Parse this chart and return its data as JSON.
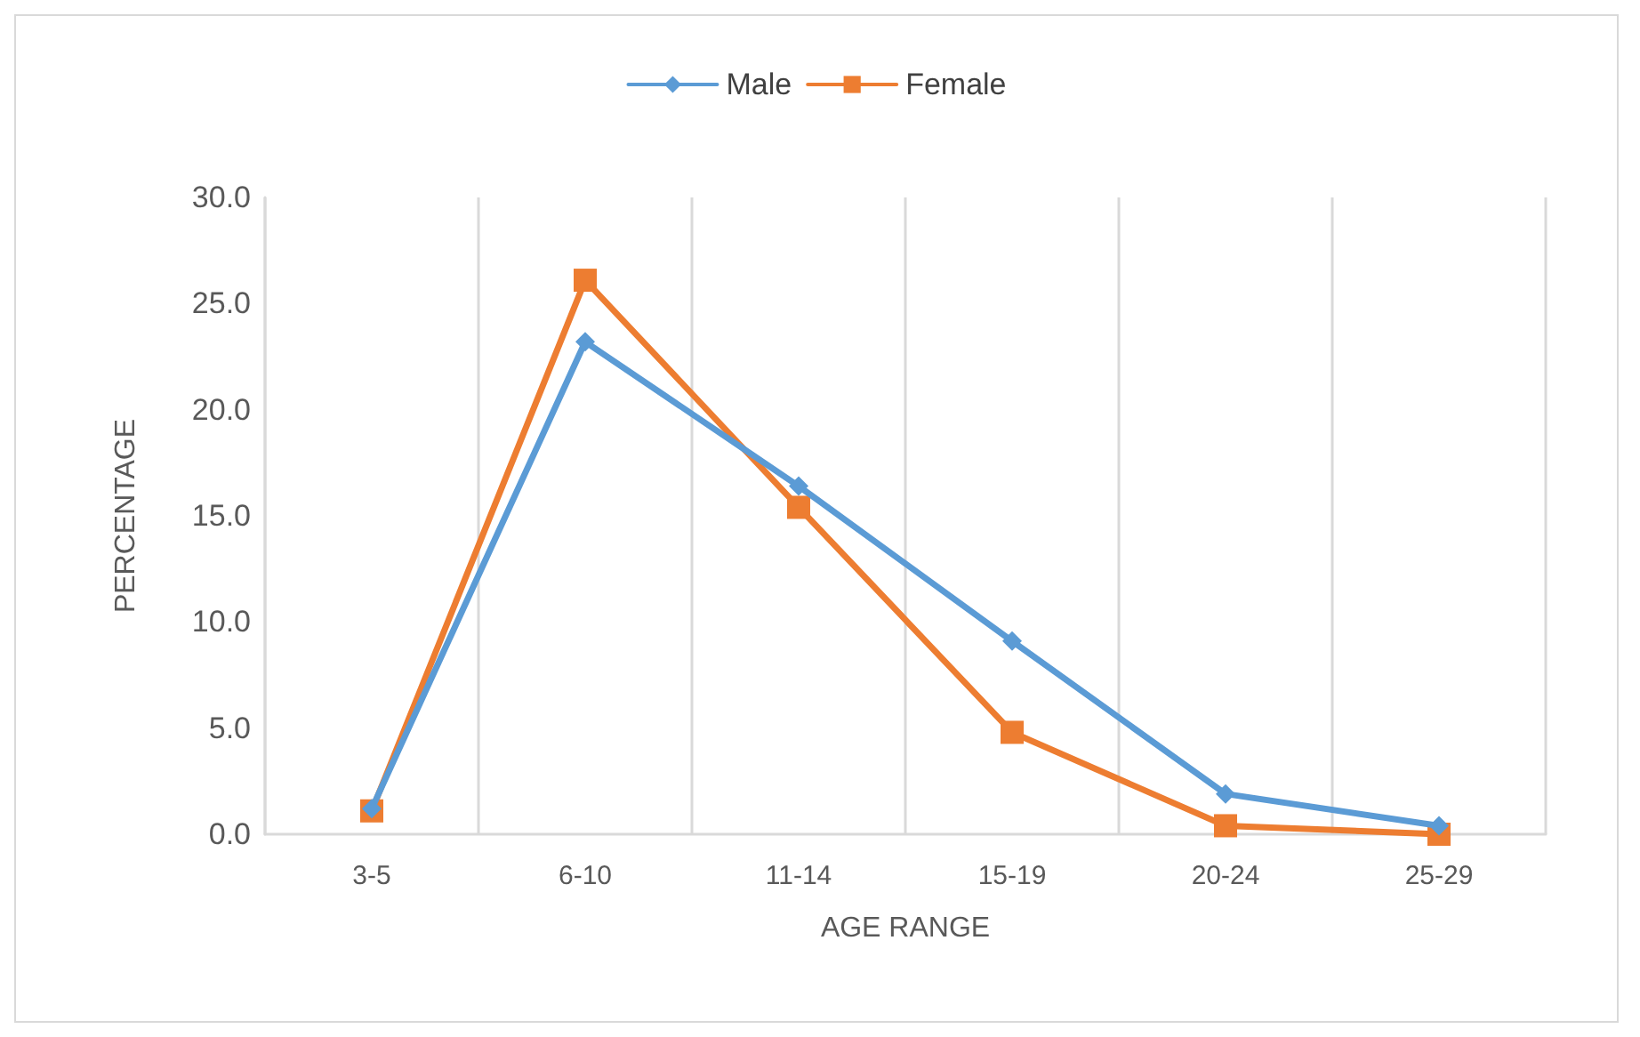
{
  "chart_data": {
    "type": "line",
    "xlabel": "AGE RANGE",
    "ylabel": "PERCENTAGE",
    "categories": [
      "3-5",
      "6-10",
      "11-14",
      "15-19",
      "20-24",
      "25-29"
    ],
    "series": [
      {
        "name": "Male",
        "color": "#5b9bd5",
        "marker": "diamond",
        "values": [
          1.2,
          23.2,
          16.4,
          9.1,
          1.9,
          0.4
        ]
      },
      {
        "name": "Female",
        "color": "#ed7d31",
        "marker": "square",
        "values": [
          1.1,
          26.1,
          15.4,
          4.8,
          0.4,
          0.0
        ]
      }
    ],
    "ylim": [
      0,
      30
    ],
    "yticks": [
      {
        "value": 0,
        "label": "0.0"
      },
      {
        "value": 5,
        "label": "5.0"
      },
      {
        "value": 10,
        "label": "10.0"
      },
      {
        "value": 15,
        "label": "15.0"
      },
      {
        "value": 20,
        "label": "20.0"
      },
      {
        "value": 25,
        "label": "25.0"
      },
      {
        "value": 30,
        "label": "30.0"
      }
    ],
    "grid": "x",
    "legend": "top",
    "line_style": "solid"
  }
}
